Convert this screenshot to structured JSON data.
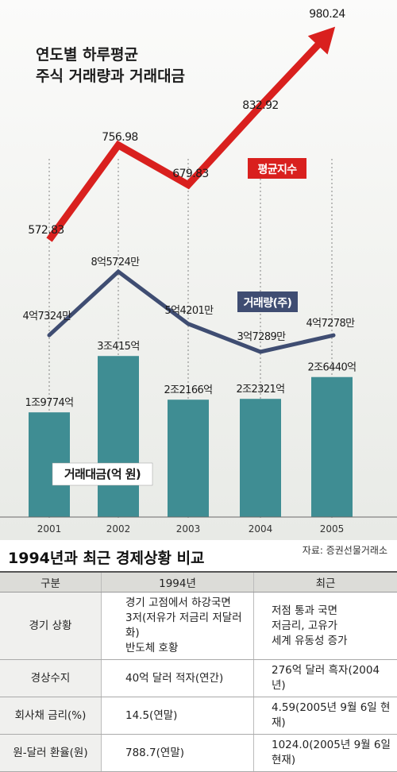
{
  "title_line1": "연도별 하루평균",
  "title_line2": "주식 거래량과 거래대금",
  "chart_data": {
    "type": "bar+line",
    "categories": [
      "2001",
      "2002",
      "2003",
      "2004",
      "2005"
    ],
    "series": [
      {
        "name": "평균지수",
        "chart": "line",
        "color": "#d9201e",
        "values": [
          572.83,
          756.98,
          679.83,
          832.92,
          980.24
        ],
        "labels": [
          "572.83",
          "756.98",
          "679.83",
          "832.92",
          "980.24"
        ]
      },
      {
        "name": "거래량(주)",
        "chart": "line",
        "color": "#3f4d72",
        "values": [
          473240000,
          857240000,
          542010000,
          372890000,
          472780000
        ],
        "labels": [
          "4억7324만",
          "8억5724만",
          "5억4201만",
          "3억7289만",
          "4억7278만"
        ]
      },
      {
        "name": "거래대금(억 원)",
        "chart": "bar",
        "color": "#3f8d93",
        "values": [
          19774,
          30415,
          22166,
          22321,
          26440
        ],
        "labels": [
          "1조9774억",
          "3조415억",
          "2조2166억",
          "2조2321억",
          "2조6440억"
        ]
      }
    ]
  },
  "source": "자료: 증권선물거래소",
  "table": {
    "title": "1994년과 최근 경제상황 비교",
    "headers": [
      "구분",
      "1994년",
      "최근"
    ],
    "rows": [
      {
        "label": "경기 상황",
        "y1994": [
          "경기 고점에서 하강국면",
          "3저(저유가 저금리 저달러화)",
          "반도체 호황"
        ],
        "recent": [
          "저점 통과 국면",
          "저금리, 고유가",
          "세계 유동성 증가"
        ]
      },
      {
        "label": "경상수지",
        "y1994": [
          "40억 달러 적자(연간)"
        ],
        "recent": [
          "276억 달러 흑자(2004년)"
        ]
      },
      {
        "label": "회사채 금리(%)",
        "y1994": [
          "14.5(연말)"
        ],
        "recent": [
          "4.59(2005년 9월 6일 현재)"
        ]
      },
      {
        "label": "원-달러 환율(원)",
        "y1994": [
          "788.7(연말)"
        ],
        "recent": [
          "1024.0(2005년 9월 6일 현재)"
        ]
      }
    ]
  }
}
